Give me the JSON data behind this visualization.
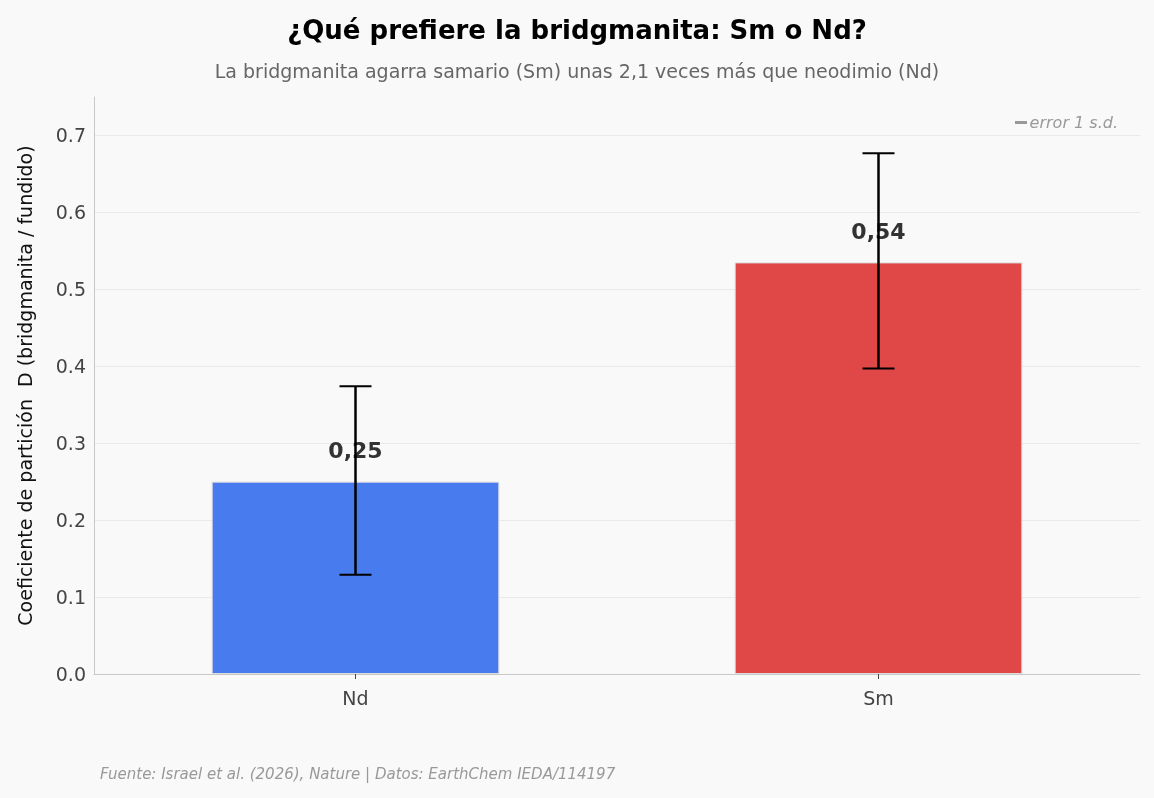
{
  "chart_data": {
    "type": "bar",
    "title": "¿Qué prefiere la bridgmanita: Sm o Nd?",
    "subtitle": "La bridgmanita agarra samario (Sm) unas 2,1 veces más que neodimio (Nd)",
    "ylabel": "Coeficiente de partición  D (bridgmanita / fundido)",
    "categories": [
      "Nd",
      "Sm"
    ],
    "values": [
      0.25,
      0.535
    ],
    "colors": [
      "#487bee",
      "#e04747"
    ],
    "errors": [
      [
        0.129,
        0.374
      ],
      [
        0.397,
        0.677
      ]
    ],
    "value_labels": [
      "0,25",
      "0,54"
    ],
    "ylim": [
      0,
      0.75
    ],
    "yticks": [
      {
        "value": 0,
        "label": "0.0"
      },
      0.1,
      0.2,
      0.3,
      0.4,
      0.5,
      0.6,
      0.7
    ],
    "grid": "y",
    "annotations": [
      "error 1 s.d.",
      "Fuente: Israel et al. (2026), Nature | Datos: EarthChem IEDA/114197"
    ]
  }
}
